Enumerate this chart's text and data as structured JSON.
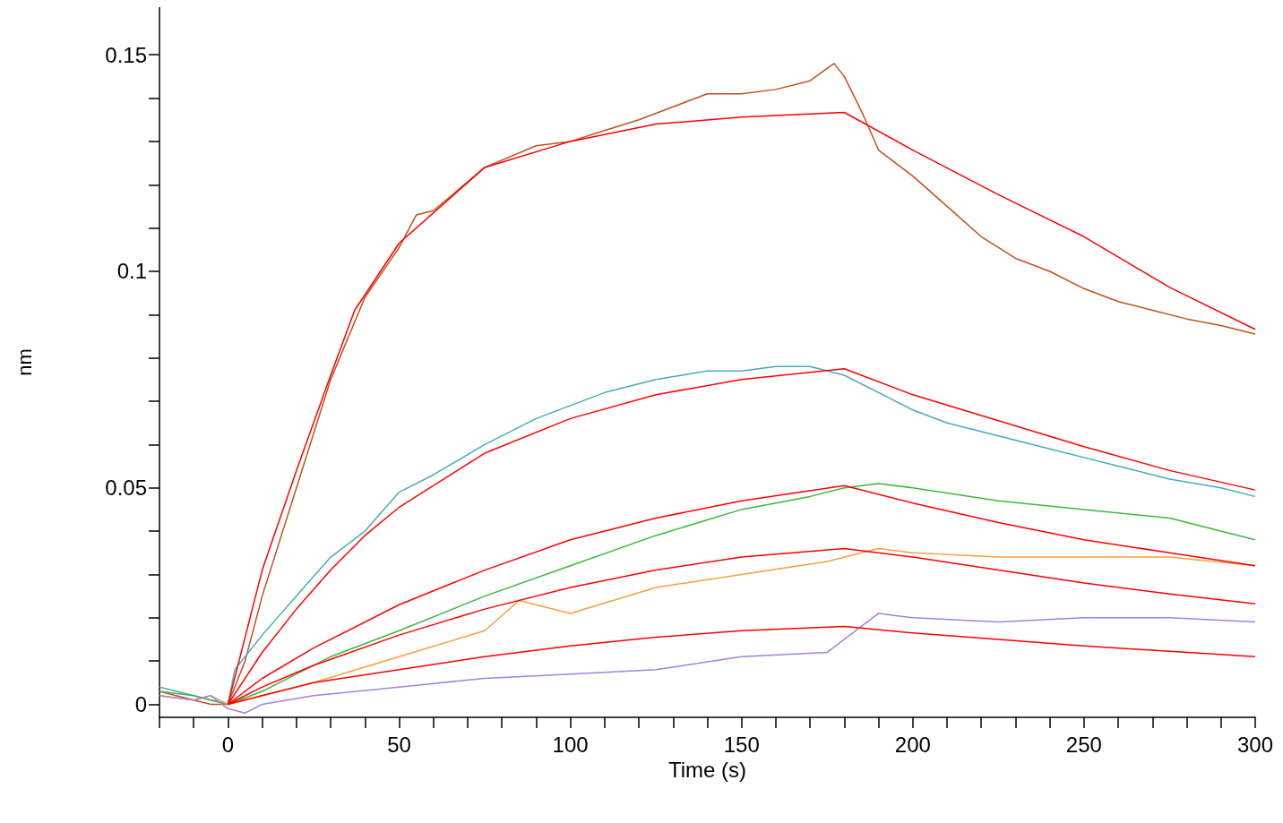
{
  "chart_data": {
    "type": "line",
    "xlabel": "Time (s)",
    "ylabel": "nm",
    "xlim": [
      -20,
      300
    ],
    "ylim": [
      -0.003,
      0.161
    ],
    "xticks": [
      {
        "value": -20,
        "label": null
      },
      {
        "value": -10,
        "label": null
      },
      0,
      {
        "value": 10,
        "label": null
      },
      {
        "value": 20,
        "label": null
      },
      {
        "value": 30,
        "label": null
      },
      {
        "value": 40,
        "label": null
      },
      50,
      {
        "value": 60,
        "label": null
      },
      {
        "value": 70,
        "label": null
      },
      {
        "value": 80,
        "label": null
      },
      {
        "value": 90,
        "label": null
      },
      100,
      {
        "value": 110,
        "label": null
      },
      {
        "value": 120,
        "label": null
      },
      {
        "value": 130,
        "label": null
      },
      {
        "value": 140,
        "label": null
      },
      150,
      {
        "value": 160,
        "label": null
      },
      {
        "value": 170,
        "label": null
      },
      {
        "value": 180,
        "label": null
      },
      {
        "value": 190,
        "label": null
      },
      200,
      {
        "value": 210,
        "label": null
      },
      {
        "value": 220,
        "label": null
      },
      {
        "value": 230,
        "label": null
      },
      {
        "value": 240,
        "label": null
      },
      250,
      {
        "value": 260,
        "label": null
      },
      {
        "value": 270,
        "label": null
      },
      {
        "value": 280,
        "label": null
      },
      {
        "value": 290,
        "label": null
      },
      300
    ],
    "yticks": [
      0,
      {
        "value": 0.01,
        "label": null
      },
      {
        "value": 0.02,
        "label": null
      },
      {
        "value": 0.03,
        "label": null
      },
      {
        "value": 0.04,
        "label": null
      },
      0.05,
      {
        "value": 0.06,
        "label": null
      },
      {
        "value": 0.07,
        "label": null
      },
      {
        "value": 0.08,
        "label": null
      },
      {
        "value": 0.09,
        "label": null
      },
      0.1,
      {
        "value": 0.11,
        "label": null
      },
      {
        "value": 0.12,
        "label": null
      },
      {
        "value": 0.13,
        "label": null
      },
      {
        "value": 0.14,
        "label": null
      },
      0.15
    ],
    "grid": false,
    "marker": "none",
    "line_style": "solid",
    "series": [
      {
        "color": "#c0501e",
        "x": [
          -20,
          -10,
          -5,
          0,
          5,
          10,
          20,
          30,
          40,
          50,
          55,
          60,
          75,
          90,
          100,
          110,
          120,
          130,
          140,
          150,
          160,
          170,
          177,
          180,
          185,
          190,
          200,
          210,
          220,
          230,
          240,
          250,
          260,
          270,
          280,
          290,
          300
        ],
        "values": [
          0.003,
          0.001,
          0.0,
          0,
          0.01,
          0.025,
          0.05,
          0.075,
          0.094,
          0.1055,
          0.113,
          0.114,
          0.124,
          0.129,
          0.13,
          0.1325,
          0.135,
          0.138,
          0.141,
          0.141,
          0.142,
          0.144,
          0.148,
          0.145,
          0.137,
          0.128,
          0.122,
          0.115,
          0.108,
          0.103,
          0.1,
          0.096,
          0.093,
          0.091,
          0.089,
          0.0875,
          0.0855
        ]
      },
      {
        "color": "#4aa8c0",
        "x": [
          -20,
          -10,
          -5,
          0,
          2,
          10,
          20,
          30,
          40,
          50,
          60,
          75,
          90,
          100,
          110,
          125,
          140,
          150,
          160,
          170,
          180,
          190,
          200,
          210,
          225,
          240,
          250,
          260,
          275,
          290,
          300
        ],
        "values": [
          0.004,
          0.002,
          0.001,
          0,
          0.008,
          0.016,
          0.025,
          0.034,
          0.04,
          0.049,
          0.053,
          0.06,
          0.066,
          0.069,
          0.072,
          0.075,
          0.077,
          0.077,
          0.078,
          0.078,
          0.076,
          0.072,
          0.068,
          0.065,
          0.062,
          0.059,
          0.057,
          0.055,
          0.052,
          0.05,
          0.048
        ]
      },
      {
        "color": "#3cb83c",
        "x": [
          -20,
          -10,
          -5,
          0,
          10,
          20,
          30,
          50,
          75,
          100,
          125,
          150,
          170,
          180,
          190,
          200,
          225,
          250,
          275,
          300
        ],
        "values": [
          0.003,
          0.002,
          0.001,
          0,
          0.003,
          0.007,
          0.011,
          0.017,
          0.025,
          0.032,
          0.039,
          0.045,
          0.048,
          0.05,
          0.051,
          0.05,
          0.047,
          0.045,
          0.043,
          0.038
        ]
      },
      {
        "color": "#f5a040",
        "x": [
          -20,
          -10,
          -5,
          0,
          10,
          25,
          50,
          75,
          85,
          100,
          125,
          150,
          175,
          190,
          200,
          225,
          250,
          275,
          300
        ],
        "values": [
          0.002,
          0.001,
          0.002,
          0,
          0.002,
          0.005,
          0.011,
          0.017,
          0.024,
          0.021,
          0.027,
          0.03,
          0.033,
          0.036,
          0.035,
          0.034,
          0.034,
          0.034,
          0.032
        ]
      },
      {
        "color": "#a87ee0",
        "x": [
          -20,
          -10,
          -5,
          0,
          5,
          10,
          25,
          50,
          75,
          100,
          125,
          150,
          175,
          185,
          190,
          200,
          225,
          250,
          275,
          300
        ],
        "values": [
          0.002,
          0.001,
          0.002,
          -0.001,
          -0.002,
          0.0,
          0.002,
          0.004,
          0.006,
          0.007,
          0.008,
          0.011,
          0.012,
          0.018,
          0.021,
          0.02,
          0.019,
          0.02,
          0.02,
          0.019
        ]
      },
      {
        "color": "#ff0000",
        "x": [
          0,
          10,
          20,
          30,
          37,
          50,
          75,
          100,
          125,
          150,
          180,
          200,
          225,
          250,
          275,
          300
        ],
        "values": [
          0,
          0.031,
          0.054,
          0.076,
          0.091,
          0.1065,
          0.124,
          0.13,
          0.134,
          0.1356,
          0.1367,
          0.128,
          0.1177,
          0.108,
          0.0963,
          0.0866
        ]
      },
      {
        "color": "#ff0000",
        "x": [
          0,
          10,
          20,
          30,
          40,
          50,
          75,
          100,
          125,
          150,
          180,
          200,
          225,
          250,
          275,
          300
        ],
        "values": [
          0,
          0.012,
          0.022,
          0.031,
          0.039,
          0.0455,
          0.058,
          0.066,
          0.0715,
          0.075,
          0.0775,
          0.0715,
          0.0655,
          0.0595,
          0.054,
          0.0495
        ]
      },
      {
        "color": "#ff0000",
        "x": [
          0,
          10,
          25,
          50,
          75,
          100,
          125,
          150,
          180,
          200,
          225,
          250,
          275,
          300
        ],
        "values": [
          0,
          0.006,
          0.013,
          0.023,
          0.031,
          0.038,
          0.043,
          0.047,
          0.0505,
          0.0465,
          0.042,
          0.038,
          0.035,
          0.032
        ]
      },
      {
        "color": "#ff0000",
        "x": [
          0,
          10,
          25,
          50,
          75,
          100,
          125,
          150,
          180,
          200,
          225,
          250,
          275,
          300
        ],
        "values": [
          0,
          0.004,
          0.009,
          0.016,
          0.022,
          0.027,
          0.031,
          0.034,
          0.036,
          0.034,
          0.031,
          0.028,
          0.0255,
          0.0232
        ]
      },
      {
        "color": "#ff0000",
        "x": [
          0,
          10,
          25,
          50,
          75,
          100,
          125,
          150,
          180,
          200,
          250,
          300
        ],
        "values": [
          0,
          0.002,
          0.005,
          0.008,
          0.011,
          0.0135,
          0.0155,
          0.017,
          0.018,
          0.0165,
          0.0135,
          0.011
        ]
      }
    ]
  }
}
